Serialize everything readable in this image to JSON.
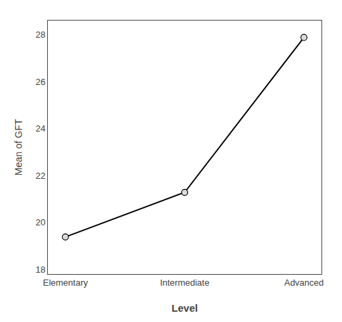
{
  "chart_data": {
    "type": "line",
    "categories": [
      "Elementary",
      "Intermediate",
      "Advanced"
    ],
    "values": [
      19.38,
      21.28,
      27.88
    ],
    "xlabel": "Level",
    "ylabel": "Mean of GFT",
    "color": "#000000",
    "marker": "circle",
    "ylim": [
      17.8,
      28.6
    ],
    "yticks": [
      18,
      20,
      22,
      24,
      26,
      28
    ],
    "grid": false
  }
}
